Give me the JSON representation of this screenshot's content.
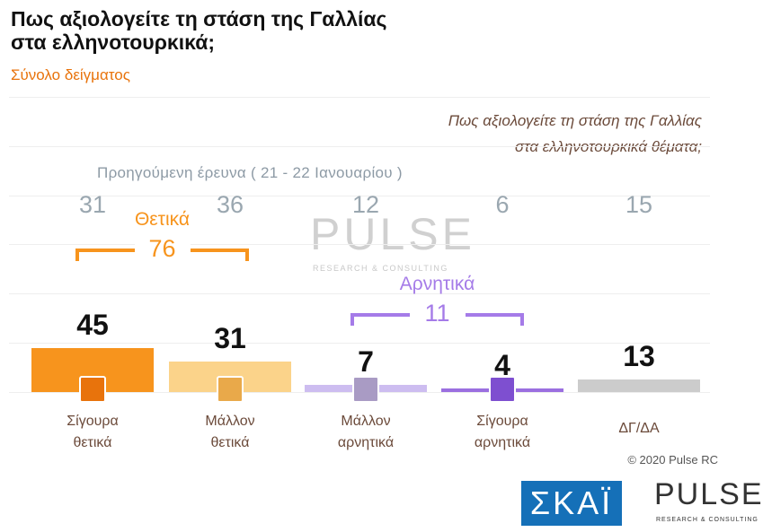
{
  "chart_data": {
    "type": "bar",
    "title": [
      "Πως αξιολογείτε τη στάση της Γαλλίας",
      "στα ελληνοτουρκικά;"
    ],
    "subtitle": "Σύνολο δείγματος",
    "question": [
      "Πως αξιολογείτε τη στάση της Γαλλίας",
      "στα ελληνοτουρκικά θέματα;"
    ],
    "previous_label": "Προηγούμενη έρευνα  ( 21 - 22  Ιανουαρίου )",
    "categories": [
      "Σίγουρα θετικά",
      "Μάλλον θετικά",
      "Μάλλον αρνητικά",
      "Σίγουρα αρνητικά",
      "ΔΓ/ΔΑ"
    ],
    "values": [
      45,
      31,
      7,
      4,
      13
    ],
    "previous_values": [
      31,
      36,
      12,
      6,
      15
    ],
    "colors": [
      "#f7941d",
      "#fbd38a",
      "#cdbdf0",
      "#9b6fe0",
      "#cccccc"
    ],
    "icon_colors": [
      "#e8730c",
      "#e9a94a",
      "#a99bc4",
      "#7e4fd0",
      null
    ],
    "groups": [
      {
        "label": "Θετικά",
        "value": 76,
        "color": "#f7941d"
      },
      {
        "label": "Αρνητικά",
        "value": 11,
        "color": "#a57be8"
      }
    ],
    "watermark": "PULSE",
    "watermark_sub": "RESEARCH & CONSULTING",
    "copyright": "© 2020 Pulse RC",
    "logos": [
      "ΣΚΑΪ",
      "PULSE",
      "RESEARCH & CONSULTING"
    ]
  }
}
